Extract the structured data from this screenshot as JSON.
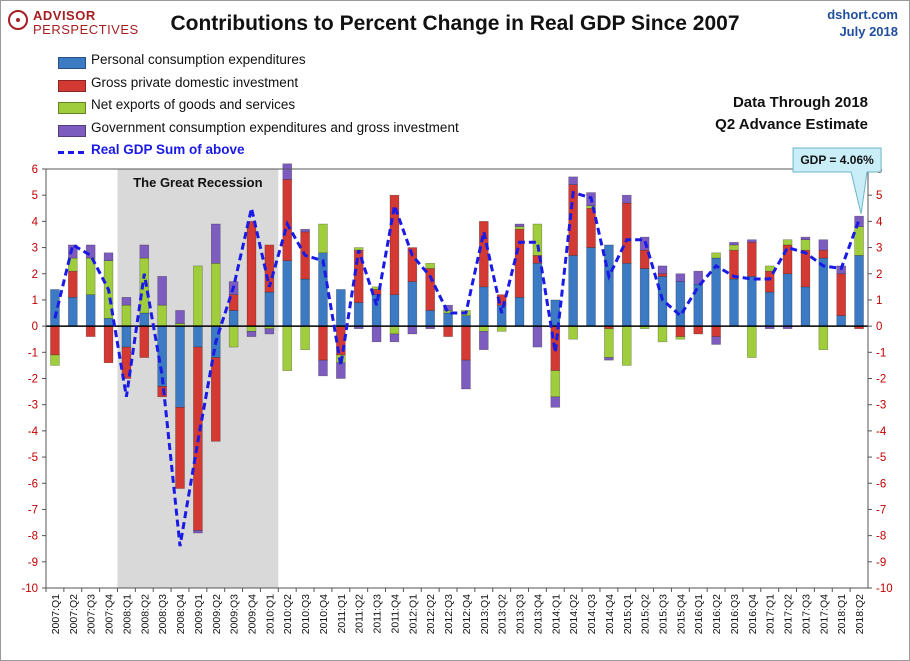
{
  "header": {
    "logo_line1": "ADVISOR",
    "logo_line2": "PERSPECTIVES",
    "title": "Contributions to Percent Change in Real GDP Since 2007",
    "source_line1": "dshort.com",
    "source_line2": "July 2018",
    "note_line1": "Data Through 2018",
    "note_line2": "Q2 Advance Estimate"
  },
  "legend": [
    {
      "label": "Personal consumption expenditures",
      "color": "#3c7ac4"
    },
    {
      "label": "Gross private domestic investment",
      "color": "#d33a33"
    },
    {
      "label": "Net exports of goods and services",
      "color": "#9fcd3c"
    },
    {
      "label": "Government consumption expenditures and gross investment",
      "color": "#7d5cbf"
    },
    {
      "label": "Real GDP Sum of above",
      "color": "#1a1ae6"
    }
  ],
  "recession_label": "The Great Recession",
  "callout": "GDP = 4.06%",
  "chart_data": {
    "type": "bar",
    "stacked": true,
    "ylim": [
      -10,
      6
    ],
    "yticks": [
      -10,
      -9,
      -8,
      -7,
      -6,
      -5,
      -4,
      -3,
      -2,
      -1,
      0,
      1,
      2,
      3,
      4,
      5,
      6
    ],
    "grid": false,
    "recession_shading": [
      "2008:Q1",
      "2010:Q1"
    ],
    "categories": [
      "2007:Q1",
      "2007:Q2",
      "2007:Q3",
      "2007:Q4",
      "2008:Q1",
      "2008:Q2",
      "2008:Q3",
      "2008:Q4",
      "2009:Q1",
      "2009:Q2",
      "2009:Q3",
      "2009:Q4",
      "2010:Q1",
      "2010:Q2",
      "2010:Q3",
      "2010:Q4",
      "2011:Q1",
      "2011:Q2",
      "2011:Q3",
      "2011:Q4",
      "2012:Q1",
      "2012:Q2",
      "2012:Q3",
      "2012:Q4",
      "2013:Q1",
      "2013:Q2",
      "2013:Q3",
      "2013:Q4",
      "2014:Q1",
      "2014:Q2",
      "2014:Q3",
      "2014:Q4",
      "2015:Q1",
      "2015:Q2",
      "2015:Q3",
      "2015:Q4",
      "2016:Q1",
      "2016:Q2",
      "2016:Q3",
      "2016:Q4",
      "2017:Q1",
      "2017:Q2",
      "2017:Q3",
      "2017:Q4",
      "2018:Q1",
      "2018:Q2"
    ],
    "series": [
      {
        "name": "Personal consumption expenditures",
        "color": "#3c7ac4",
        "values": [
          1.4,
          1.1,
          1.2,
          0.3,
          -0.8,
          0.5,
          -2.3,
          -3.1,
          -0.8,
          -1.2,
          0.6,
          0.0,
          1.3,
          2.5,
          1.8,
          2.8,
          1.4,
          0.9,
          1.2,
          1.2,
          1.7,
          0.6,
          0.5,
          0.4,
          1.5,
          0.8,
          1.1,
          2.4,
          1.0,
          2.7,
          3.0,
          3.1,
          2.4,
          2.2,
          1.9,
          1.7,
          1.6,
          2.6,
          1.8,
          1.9,
          1.3,
          2.0,
          1.5,
          2.6,
          0.4,
          2.7
        ]
      },
      {
        "name": "Gross private domestic investment",
        "color": "#d33a33",
        "values": [
          -1.1,
          1.0,
          -0.4,
          -1.4,
          -1.2,
          -1.2,
          -0.4,
          -3.1,
          -7.0,
          -3.2,
          0.6,
          4.0,
          1.8,
          3.1,
          1.8,
          -1.3,
          -1.1,
          2.0,
          0.2,
          3.8,
          1.3,
          1.6,
          -0.4,
          -1.3,
          2.5,
          0.4,
          2.6,
          0.3,
          -1.7,
          2.7,
          1.5,
          -0.1,
          2.3,
          0.7,
          0.1,
          -0.4,
          -0.3,
          -0.4,
          1.1,
          1.3,
          0.8,
          1.1,
          1.4,
          0.3,
          1.6,
          -0.1
        ]
      },
      {
        "name": "Net exports of goods and services",
        "color": "#9fcd3c",
        "values": [
          -0.4,
          0.5,
          1.4,
          2.2,
          0.8,
          2.1,
          0.8,
          0.1,
          2.3,
          2.4,
          -0.8,
          -0.2,
          -0.1,
          -1.7,
          -0.9,
          1.1,
          -0.3,
          0.1,
          0.1,
          -0.3,
          0.0,
          0.2,
          0.1,
          0.2,
          -0.2,
          -0.2,
          0.1,
          1.2,
          -1.0,
          -0.5,
          0.1,
          -1.1,
          -1.5,
          -0.1,
          -0.6,
          -0.1,
          0.0,
          0.2,
          0.2,
          -1.2,
          0.2,
          0.2,
          0.4,
          -0.9,
          0.0,
          1.1
        ]
      },
      {
        "name": "Government consumption expenditures and gross investment",
        "color": "#7d5cbf",
        "values": [
          0.0,
          0.5,
          0.5,
          0.3,
          0.3,
          0.5,
          1.1,
          0.5,
          -0.1,
          1.5,
          0.5,
          -0.2,
          -0.2,
          0.6,
          0.1,
          -0.6,
          -0.6,
          -0.1,
          -0.6,
          -0.3,
          -0.3,
          -0.1,
          0.2,
          -1.1,
          -0.7,
          0.0,
          0.1,
          -0.8,
          -0.4,
          0.3,
          0.5,
          -0.1,
          0.3,
          0.5,
          0.3,
          0.3,
          0.5,
          -0.3,
          0.1,
          0.1,
          -0.1,
          -0.1,
          0.1,
          0.4,
          0.3,
          0.4
        ]
      }
    ],
    "gdp": [
      0.3,
      3.1,
      2.7,
      1.4,
      -2.7,
      2.0,
      -1.9,
      -8.4,
      -4.4,
      -0.6,
      1.5,
      4.5,
      1.5,
      3.9,
      2.7,
      2.5,
      -1.5,
      2.9,
      0.8,
      4.6,
      2.7,
      1.9,
      0.5,
      0.5,
      3.6,
      0.5,
      3.2,
      3.2,
      -1.0,
      5.1,
      4.9,
      1.9,
      3.3,
      3.3,
      1.0,
      0.4,
      1.5,
      2.3,
      1.9,
      1.8,
      1.8,
      3.0,
      2.8,
      2.3,
      2.2,
      4.06
    ]
  }
}
